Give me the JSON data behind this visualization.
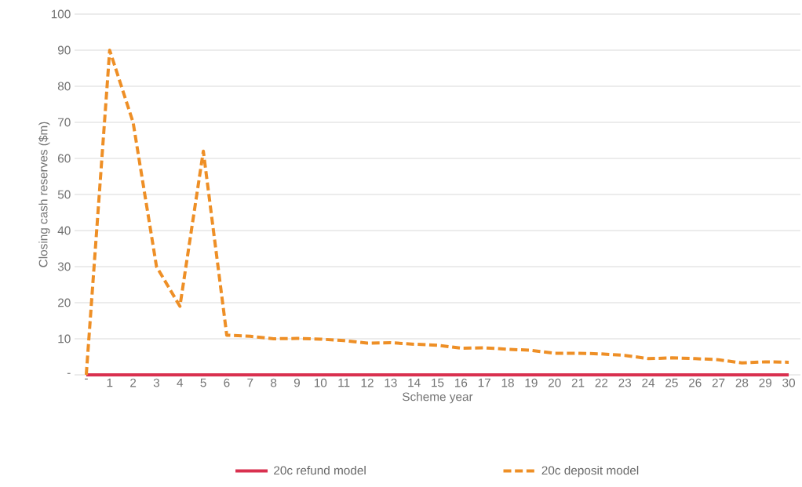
{
  "chart_data": {
    "type": "line",
    "xlabel": "Scheme year",
    "ylabel": "Closing  cash reserves ($m)",
    "categories": [
      "-",
      "1",
      "2",
      "3",
      "4",
      "5",
      "6",
      "7",
      "8",
      "9",
      "10",
      "11",
      "12",
      "13",
      "14",
      "15",
      "16",
      "17",
      "18",
      "19",
      "20",
      "21",
      "22",
      "23",
      "24",
      "25",
      "26",
      "27",
      "28",
      "29",
      "30"
    ],
    "ylim": [
      0,
      100
    ],
    "yticks": [
      {
        "value": 0,
        "label": "-"
      },
      10,
      20,
      30,
      40,
      50,
      60,
      70,
      80,
      90,
      100
    ],
    "grid": "y",
    "legend": "bottom",
    "series": [
      {
        "name": "20c refund model",
        "color": "#d9304f",
        "line_style": "solid",
        "values": [
          0,
          0,
          0,
          0,
          0,
          0,
          0,
          0,
          0,
          0,
          0,
          0,
          0,
          0,
          0,
          0,
          0,
          0,
          0,
          0,
          0,
          0,
          0,
          0,
          0,
          0,
          0,
          0,
          0,
          0,
          0
        ]
      },
      {
        "name": "20c deposit model",
        "color": "#ee8f26",
        "line_style": "dashed",
        "values": [
          0,
          90,
          70,
          30,
          19,
          62,
          11,
          10.7,
          10,
          10.1,
          9.9,
          9.5,
          8.8,
          8.9,
          8.5,
          8.2,
          7.4,
          7.5,
          7.1,
          6.8,
          6,
          6,
          5.8,
          5.4,
          4.5,
          4.7,
          4.5,
          4.2,
          3.3,
          3.6,
          3.5
        ]
      }
    ]
  }
}
